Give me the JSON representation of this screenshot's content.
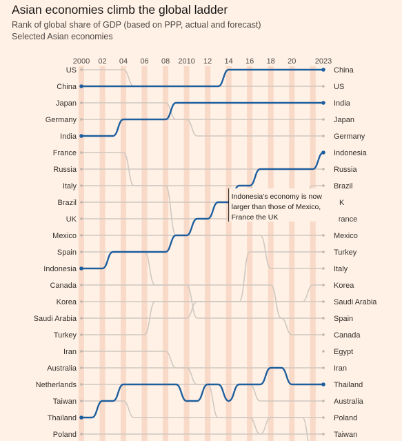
{
  "header": {
    "title": "Asian economies climb the global ladder",
    "subtitle": "Rank of global share of GDP (based on PPP, actual and forecast)",
    "subtitle2": "Selected Asian economies"
  },
  "chart_data": {
    "type": "line",
    "title": "Asian economies climb the global ladder",
    "subtitle": "Rank of global share of GDP (based on PPP, actual and forecast)",
    "x_ticks": [
      "2000",
      "02",
      "04",
      "06",
      "08",
      "2010",
      "12",
      "14",
      "16",
      "18",
      "20",
      "2023"
    ],
    "x_range": [
      2000,
      2023
    ],
    "y_axis": "rank (1 = largest), inverted",
    "left_labels": [
      "US",
      "China",
      "Japan",
      "Germany",
      "India",
      "France",
      "Russia",
      "Italy",
      "Brazil",
      "UK",
      "Mexico",
      "Spain",
      "Indonesia",
      "Canada",
      "Korea",
      "Saudi Arabia",
      "Turkey",
      "Iran",
      "Australia",
      "Netherlands",
      "Taiwan",
      "Thailand",
      "Poland"
    ],
    "right_labels": [
      "China",
      "US",
      "India",
      "Japan",
      "Germany",
      "Indonesia",
      "Russia",
      "Brazil",
      "UK",
      "France",
      "Mexico",
      "Turkey",
      "Italy",
      "Korea",
      "Saudi Arabia",
      "Spain",
      "Canada",
      "Egypt",
      "Iran",
      "Thailand",
      "Australia",
      "Poland",
      "Taiwan"
    ],
    "highlighted_series": [
      {
        "name": "China",
        "points": [
          [
            2000,
            2
          ],
          [
            2013,
            2
          ],
          [
            2014,
            1
          ],
          [
            2023,
            1
          ]
        ]
      },
      {
        "name": "India",
        "points": [
          [
            2000,
            5
          ],
          [
            2003,
            5
          ],
          [
            2004,
            4
          ],
          [
            2008,
            4
          ],
          [
            2009,
            3
          ],
          [
            2023,
            3
          ]
        ]
      },
      {
        "name": "Indonesia",
        "points": [
          [
            2000,
            13
          ],
          [
            2002,
            13
          ],
          [
            2003,
            12
          ],
          [
            2008,
            12
          ],
          [
            2009,
            11
          ],
          [
            2010,
            11
          ],
          [
            2011,
            10
          ],
          [
            2012,
            10
          ],
          [
            2013,
            9
          ],
          [
            2014,
            9
          ],
          [
            2015,
            8
          ],
          [
            2016,
            8
          ],
          [
            2017,
            7
          ],
          [
            2022,
            7
          ],
          [
            2023,
            6
          ]
        ]
      },
      {
        "name": "Thailand",
        "points": [
          [
            2000,
            22
          ],
          [
            2001,
            22
          ],
          [
            2002,
            21
          ],
          [
            2003,
            21
          ],
          [
            2004,
            20
          ],
          [
            2009,
            20
          ],
          [
            2010,
            21
          ],
          [
            2011,
            21
          ],
          [
            2012,
            20
          ],
          [
            2013,
            20
          ],
          [
            2014,
            21
          ],
          [
            2015,
            20
          ],
          [
            2017,
            20
          ],
          [
            2018,
            19
          ],
          [
            2019,
            19
          ],
          [
            2020,
            20
          ],
          [
            2023,
            20
          ]
        ]
      }
    ],
    "annotation": {
      "year": 2014,
      "lines": [
        "Indonesia’s economy is now",
        "larger than those of Mexico,",
        "France the UK"
      ]
    },
    "colors": {
      "highlight": "#1d5e9e",
      "background_lines": "#cfc8c1",
      "band": "#f9d9c7",
      "background": "#fff1e5"
    }
  }
}
